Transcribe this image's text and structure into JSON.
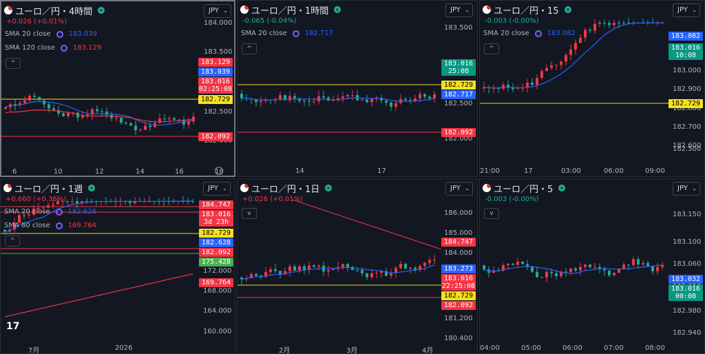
{
  "colors": {
    "up": "#f23645",
    "down": "#22ab94",
    "sma20": "#2962ff",
    "sma_long": "#f23645",
    "yellow": "#f5e11c",
    "red_line": "#f23645"
  },
  "panels": [
    {
      "id": "p1",
      "symbol": "ユーロ／円・4時間",
      "change": "+0.026 (+0.01%)",
      "change_class": "neg",
      "legend": [
        {
          "label": "SMA 20 close",
          "value": "183.039",
          "color": "#2962ff"
        },
        {
          "label": "SMA 120 close",
          "value": "183.129",
          "color": "#f23645"
        }
      ],
      "currency": "JPY",
      "y_labels": [
        "184.000",
        "183.500",
        "183.000",
        "182.500",
        "182.000"
      ],
      "x_labels": [
        "6",
        "10",
        "12",
        "14",
        "16",
        "18"
      ],
      "tags": [
        {
          "text": "183.129",
          "bg": "#f23645"
        },
        {
          "text": "183.039",
          "bg": "#2962ff"
        },
        {
          "text": "183.016",
          "sub": "02:25:08",
          "bg": "#f23645"
        },
        {
          "text": "182.729",
          "bg": "#f5e11c",
          "fg": "#000"
        },
        {
          "text": "182.092",
          "bg": "#f23645"
        }
      ],
      "series_seed": 11
    },
    {
      "id": "p2",
      "symbol": "ユーロ／円・1時間",
      "change": "-0.065 (-0.04%)",
      "change_class": "negg",
      "legend": [
        {
          "label": "SMA 20 close",
          "value": "182.717",
          "color": "#2962ff"
        }
      ],
      "currency": "JPY",
      "y_labels": [
        "183.500",
        "183.000",
        "182.500",
        "182.000"
      ],
      "x_labels": [
        "14",
        "17"
      ],
      "tags": [
        {
          "text": "183.016",
          "sub": "25:08",
          "bg": "#089981"
        },
        {
          "text": "182.729",
          "bg": "#f5e11c",
          "fg": "#000"
        },
        {
          "text": "182.717",
          "bg": "#2962ff"
        },
        {
          "text": "182.092",
          "bg": "#f23645"
        }
      ],
      "series_seed": 23
    },
    {
      "id": "p3",
      "symbol": "ユーロ／円・15",
      "change": "-0.003 (-0.00%)",
      "change_class": "negg",
      "legend": [
        {
          "label": "SMA 20 close",
          "value": "183.082",
          "color": "#2962ff"
        }
      ],
      "currency": "JPY",
      "y_labels": [
        "183.000",
        "182.900",
        "182.800",
        "182.700",
        "182.600",
        "182.500"
      ],
      "x_labels": [
        "21:00",
        "17",
        "03:00",
        "06:00",
        "09:00"
      ],
      "tags": [
        {
          "text": "183.082",
          "bg": "#2962ff"
        },
        {
          "text": "183.016",
          "sub": "10:08",
          "bg": "#089981"
        },
        {
          "text": "182.729",
          "bg": "#f5e11c",
          "fg": "#000"
        }
      ],
      "series_seed": 37
    },
    {
      "id": "p4",
      "symbol": "ユーロ／円・1週",
      "change": "+0.660 (+0.36%)",
      "change_class": "neg",
      "legend": [
        {
          "label": "SMA 20 close",
          "value": "182.628",
          "color": "#2962ff"
        },
        {
          "label": "SMA 80 close",
          "value": "169.764",
          "color": "#f23645"
        }
      ],
      "currency": "JPY",
      "y_labels": [
        "172.000",
        "168.000",
        "164.000",
        "160.000"
      ],
      "x_labels": [
        "7月",
        "2026"
      ],
      "tags": [
        {
          "text": "184.747",
          "bg": "#f23645"
        },
        {
          "text": "183.016",
          "sub": "3d 23h",
          "bg": "#f23645"
        },
        {
          "text": "182.729",
          "bg": "#f5e11c",
          "fg": "#000"
        },
        {
          "text": "182.628",
          "bg": "#2962ff"
        },
        {
          "text": "182.092",
          "bg": "#f23645"
        },
        {
          "text": "175.428",
          "bg": "#4caf50"
        },
        {
          "text": "169.764",
          "bg": "#f23645"
        }
      ],
      "series_seed": 41
    },
    {
      "id": "p5",
      "symbol": "ユーロ／円・1日",
      "change": "+0.026 (+0.01%)",
      "change_class": "neg",
      "legend": [],
      "currency": "JPY",
      "y_labels": [
        "186.000",
        "185.000",
        "184.000",
        "181.200",
        "180.400"
      ],
      "x_labels": [
        "2月",
        "3月",
        "4月"
      ],
      "tags": [
        {
          "text": "184.747",
          "bg": "#f23645"
        },
        {
          "text": "183.273",
          "bg": "#2962ff"
        },
        {
          "text": "183.016",
          "sub": "22:25:08",
          "bg": "#f23645"
        },
        {
          "text": "182.729",
          "bg": "#f5e11c",
          "fg": "#000"
        },
        {
          "text": "182.092",
          "bg": "#f23645"
        }
      ],
      "series_seed": 53
    },
    {
      "id": "p6",
      "symbol": "ユーロ／円・5",
      "change": "-0.003 (-0.00%)",
      "change_class": "negg",
      "legend": [],
      "currency": "JPY",
      "y_labels": [
        "183.150",
        "183.100",
        "183.060",
        "183.020",
        "182.980",
        "182.940"
      ],
      "x_labels": [
        "04:00",
        "05:00",
        "06:00",
        "07:00",
        "08:00"
      ],
      "tags": [
        {
          "text": "183.032",
          "bg": "#2962ff"
        },
        {
          "text": "183.016",
          "sub": "00:08",
          "bg": "#089981"
        }
      ],
      "series_seed": 67
    }
  ]
}
